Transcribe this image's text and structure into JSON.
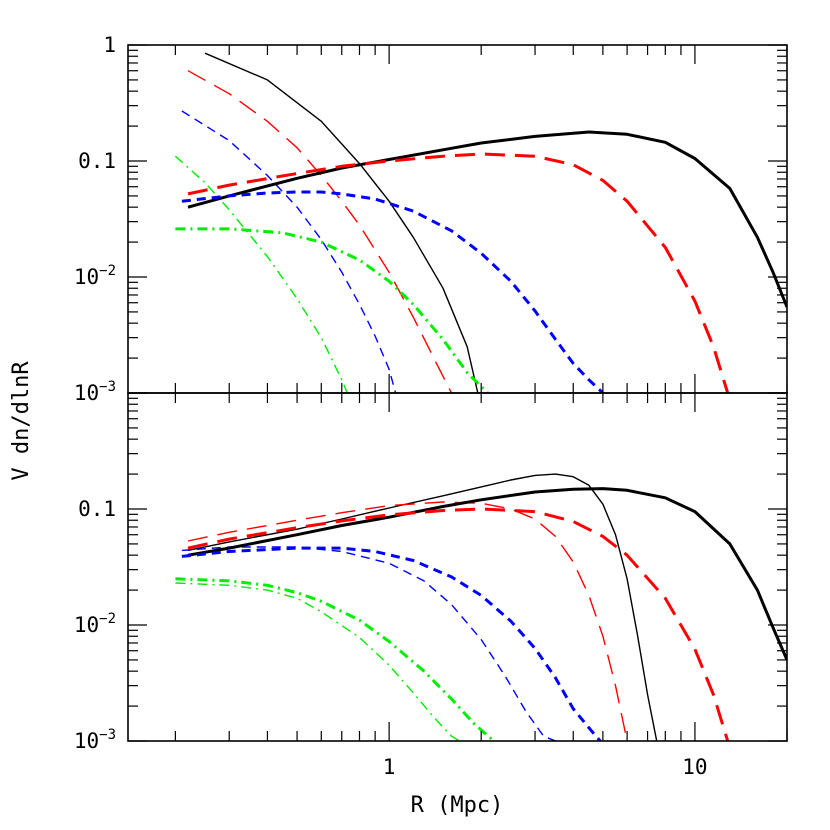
{
  "chart_data": [
    {
      "panel": "top",
      "type": "line",
      "xlabel": "",
      "ylabel": "V dn/dlnR",
      "xscale": "log",
      "yscale": "log",
      "xlim": [
        0.14,
        20
      ],
      "ylim": [
        0.001,
        1
      ],
      "grid": false,
      "x_tick_labels": [
        {
          "value": 1,
          "label": ""
        },
        {
          "value": 10,
          "label": ""
        }
      ],
      "y_tick_labels": [
        {
          "value": 1,
          "label": "1",
          "exp": ""
        },
        {
          "value": 0.1,
          "label": "0.1",
          "exp": ""
        },
        {
          "value": 0.01,
          "label": "10",
          "exp": "−2"
        },
        {
          "value": 0.001,
          "label": "10",
          "exp": "−3"
        }
      ],
      "series": [
        {
          "color": "#000000",
          "dash": "solid",
          "weight": "thin",
          "x": [
            0.25,
            0.4,
            0.6,
            0.8,
            1.0,
            1.2,
            1.5,
            1.8,
            1.95
          ],
          "y": [
            0.85,
            0.5,
            0.22,
            0.095,
            0.045,
            0.022,
            0.008,
            0.0025,
            0.001
          ]
        },
        {
          "color": "#ff0000",
          "dash": "longdash",
          "weight": "thin",
          "x": [
            0.22,
            0.3,
            0.4,
            0.5,
            0.6,
            0.7,
            0.8,
            1.0,
            1.2,
            1.4,
            1.6
          ],
          "y": [
            0.6,
            0.38,
            0.22,
            0.13,
            0.075,
            0.045,
            0.028,
            0.011,
            0.0045,
            0.002,
            0.001
          ]
        },
        {
          "color": "#0000ff",
          "dash": "shortdash",
          "weight": "thin",
          "x": [
            0.21,
            0.3,
            0.4,
            0.5,
            0.6,
            0.7,
            0.8,
            0.9,
            1.0,
            1.05
          ],
          "y": [
            0.27,
            0.15,
            0.075,
            0.04,
            0.021,
            0.011,
            0.0058,
            0.0031,
            0.0016,
            0.001
          ]
        },
        {
          "color": "#00ee00",
          "dash": "dashdot",
          "weight": "thin",
          "x": [
            0.2,
            0.25,
            0.3,
            0.4,
            0.5,
            0.6,
            0.7,
            0.73
          ],
          "y": [
            0.11,
            0.065,
            0.038,
            0.015,
            0.0065,
            0.003,
            0.0013,
            0.001
          ]
        },
        {
          "color": "#000000",
          "dash": "solid",
          "weight": "thick",
          "x": [
            0.22,
            0.3,
            0.5,
            0.7,
            1.0,
            1.5,
            2.0,
            3.0,
            4.5,
            6.0,
            8.0,
            10.0,
            13.0,
            16.0,
            18.0,
            20.0
          ],
          "y": [
            0.04,
            0.05,
            0.071,
            0.087,
            0.103,
            0.125,
            0.143,
            0.163,
            0.178,
            0.17,
            0.145,
            0.105,
            0.058,
            0.022,
            0.011,
            0.0055
          ]
        },
        {
          "color": "#ff0000",
          "dash": "longdash",
          "weight": "thick",
          "x": [
            0.22,
            0.3,
            0.5,
            0.7,
            1.0,
            1.5,
            2.0,
            3.0,
            4.0,
            5.0,
            6.0,
            8.0,
            10.0,
            11.5,
            12.8
          ],
          "y": [
            0.052,
            0.062,
            0.078,
            0.09,
            0.1,
            0.11,
            0.115,
            0.11,
            0.093,
            0.068,
            0.045,
            0.018,
            0.0062,
            0.0025,
            0.001
          ]
        },
        {
          "color": "#0000ff",
          "dash": "shortdash",
          "weight": "thick",
          "x": [
            0.21,
            0.3,
            0.4,
            0.5,
            0.6,
            0.7,
            0.9,
            1.2,
            1.6,
            2.0,
            2.5,
            3.0,
            3.5,
            4.0,
            4.5,
            5.0
          ],
          "y": [
            0.045,
            0.05,
            0.053,
            0.054,
            0.054,
            0.052,
            0.047,
            0.037,
            0.025,
            0.016,
            0.0092,
            0.0051,
            0.0029,
            0.0018,
            0.0013,
            0.001
          ]
        },
        {
          "color": "#00ee00",
          "dash": "dashdot",
          "weight": "thick",
          "x": [
            0.2,
            0.3,
            0.45,
            0.6,
            0.8,
            1.0,
            1.2,
            1.5,
            1.8,
            2.1
          ],
          "y": [
            0.026,
            0.026,
            0.024,
            0.02,
            0.014,
            0.0092,
            0.0058,
            0.0029,
            0.0015,
            0.001
          ]
        }
      ]
    },
    {
      "panel": "bottom",
      "type": "line",
      "xlabel": "R (Mpc)",
      "ylabel": "",
      "xscale": "log",
      "yscale": "log",
      "xlim": [
        0.14,
        20
      ],
      "ylim": [
        0.001,
        1
      ],
      "grid": false,
      "x_tick_labels": [
        {
          "value": 1,
          "label": "1"
        },
        {
          "value": 10,
          "label": "10"
        }
      ],
      "y_tick_labels": [
        {
          "value": 0.1,
          "label": "0.1",
          "exp": ""
        },
        {
          "value": 0.01,
          "label": "10",
          "exp": "−2"
        },
        {
          "value": 0.001,
          "label": "10",
          "exp": "−3"
        }
      ],
      "series": [
        {
          "color": "#000000",
          "dash": "solid",
          "weight": "thin",
          "x": [
            0.22,
            0.3,
            0.5,
            0.7,
            1.0,
            1.5,
            2.0,
            2.5,
            3.0,
            3.5,
            4.0,
            4.5,
            5.0,
            5.5,
            6.0,
            6.5,
            7.0,
            7.5
          ],
          "y": [
            0.044,
            0.052,
            0.067,
            0.082,
            0.102,
            0.13,
            0.155,
            0.178,
            0.195,
            0.2,
            0.19,
            0.16,
            0.11,
            0.06,
            0.025,
            0.008,
            0.0025,
            0.001
          ]
        },
        {
          "color": "#ff0000",
          "dash": "longdash",
          "weight": "thin",
          "x": [
            0.22,
            0.3,
            0.5,
            0.7,
            1.0,
            1.5,
            2.0,
            2.5,
            3.0,
            3.5,
            4.0,
            4.5,
            5.0,
            5.5,
            6.0
          ],
          "y": [
            0.053,
            0.063,
            0.08,
            0.093,
            0.107,
            0.115,
            0.112,
            0.1,
            0.082,
            0.058,
            0.035,
            0.018,
            0.008,
            0.003,
            0.001
          ]
        },
        {
          "color": "#0000ff",
          "dash": "shortdash",
          "weight": "thin",
          "x": [
            0.21,
            0.3,
            0.5,
            0.7,
            1.0,
            1.3,
            1.6,
            2.0,
            2.4,
            2.8,
            3.2,
            3.5
          ],
          "y": [
            0.044,
            0.047,
            0.047,
            0.043,
            0.034,
            0.024,
            0.015,
            0.0075,
            0.0036,
            0.0018,
            0.0011,
            0.001
          ]
        },
        {
          "color": "#00ee00",
          "dash": "dashdot",
          "weight": "thin",
          "x": [
            0.2,
            0.3,
            0.4,
            0.5,
            0.6,
            0.8,
            1.0,
            1.2,
            1.4,
            1.6,
            1.7
          ],
          "y": [
            0.023,
            0.022,
            0.02,
            0.017,
            0.013,
            0.0078,
            0.0045,
            0.0026,
            0.0016,
            0.0011,
            0.001
          ]
        },
        {
          "color": "#000000",
          "dash": "solid",
          "weight": "thick",
          "x": [
            0.22,
            0.3,
            0.5,
            0.7,
            1.0,
            1.5,
            2.0,
            3.0,
            4.0,
            5.0,
            6.0,
            8.0,
            10.0,
            13.0,
            16.0,
            18.0,
            20.0
          ],
          "y": [
            0.04,
            0.046,
            0.06,
            0.072,
            0.085,
            0.105,
            0.12,
            0.14,
            0.148,
            0.15,
            0.145,
            0.125,
            0.095,
            0.05,
            0.02,
            0.0095,
            0.005
          ]
        },
        {
          "color": "#ff0000",
          "dash": "longdash",
          "weight": "thick",
          "x": [
            0.22,
            0.3,
            0.5,
            0.7,
            1.0,
            1.5,
            2.0,
            3.0,
            4.0,
            5.0,
            6.0,
            8.0,
            10.0,
            11.5,
            12.8
          ],
          "y": [
            0.046,
            0.055,
            0.069,
            0.079,
            0.089,
            0.097,
            0.1,
            0.095,
            0.078,
            0.058,
            0.04,
            0.017,
            0.0062,
            0.0025,
            0.001
          ]
        },
        {
          "color": "#0000ff",
          "dash": "shortdash",
          "weight": "thick",
          "x": [
            0.21,
            0.3,
            0.5,
            0.7,
            0.9,
            1.2,
            1.6,
            2.0,
            2.5,
            3.0,
            3.5,
            4.0,
            4.5,
            4.9
          ],
          "y": [
            0.039,
            0.043,
            0.046,
            0.046,
            0.043,
            0.036,
            0.026,
            0.018,
            0.0108,
            0.0063,
            0.0035,
            0.0019,
            0.0013,
            0.001
          ]
        },
        {
          "color": "#00ee00",
          "dash": "dashdot",
          "weight": "thick",
          "x": [
            0.2,
            0.3,
            0.4,
            0.5,
            0.6,
            0.8,
            1.0,
            1.3,
            1.6,
            1.9,
            2.2
          ],
          "y": [
            0.025,
            0.024,
            0.022,
            0.019,
            0.016,
            0.011,
            0.0072,
            0.004,
            0.0023,
            0.0014,
            0.001
          ]
        }
      ]
    }
  ]
}
